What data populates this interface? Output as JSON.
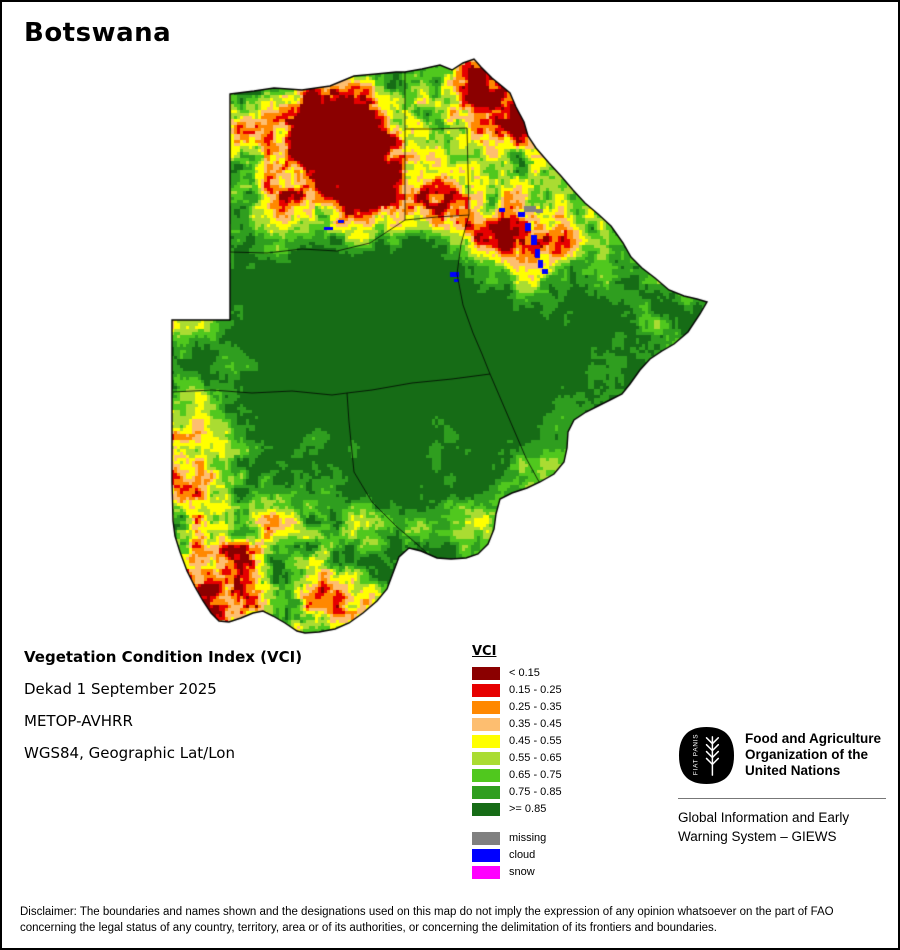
{
  "title": "Botswana",
  "info": {
    "index_name": "Vegetation Condition Index (VCI)",
    "dekad": "Dekad 1 September 2025",
    "sensor": "METOP-AVHRR",
    "projection": "WGS84, Geographic Lat/Lon"
  },
  "legend": {
    "title": "VCI",
    "entries": [
      {
        "label": "< 0.15",
        "color": "#8b0000"
      },
      {
        "label": "0.15 - 0.25",
        "color": "#e60000"
      },
      {
        "label": "0.25 - 0.35",
        "color": "#ff8800"
      },
      {
        "label": "0.35 - 0.45",
        "color": "#fdbe70"
      },
      {
        "label": "0.45 - 0.55",
        "color": "#ffff00"
      },
      {
        "label": "0.55 - 0.65",
        "color": "#aadc32"
      },
      {
        "label": "0.65 - 0.75",
        "color": "#50c81e"
      },
      {
        "label": "0.75 - 0.85",
        "color": "#2f9e1f"
      },
      {
        "label": ">= 0.85",
        "color": "#166c16"
      }
    ],
    "extra_entries": [
      {
        "label": "missing",
        "color": "#808080"
      },
      {
        "label": "cloud",
        "color": "#0000ff"
      },
      {
        "label": "snow",
        "color": "#ff00ff"
      }
    ]
  },
  "fao": {
    "logo_motto": "FIAT PANIS",
    "org_lines": [
      "Food and Agriculture",
      "Organization of the",
      "United Nations"
    ],
    "giews_lines": [
      "Global Information and Early",
      "Warning System – GIEWS"
    ]
  },
  "disclaimer": {
    "lines": [
      "Disclaimer: The boundaries and names shown and the designations used on this map do not imply the expression of any opinion whatsoever on the part of FAO",
      "concerning the legal status of any country, territory, area or of its authorities, or concerning the delimitation of its frontiers and boundaries."
    ]
  }
}
